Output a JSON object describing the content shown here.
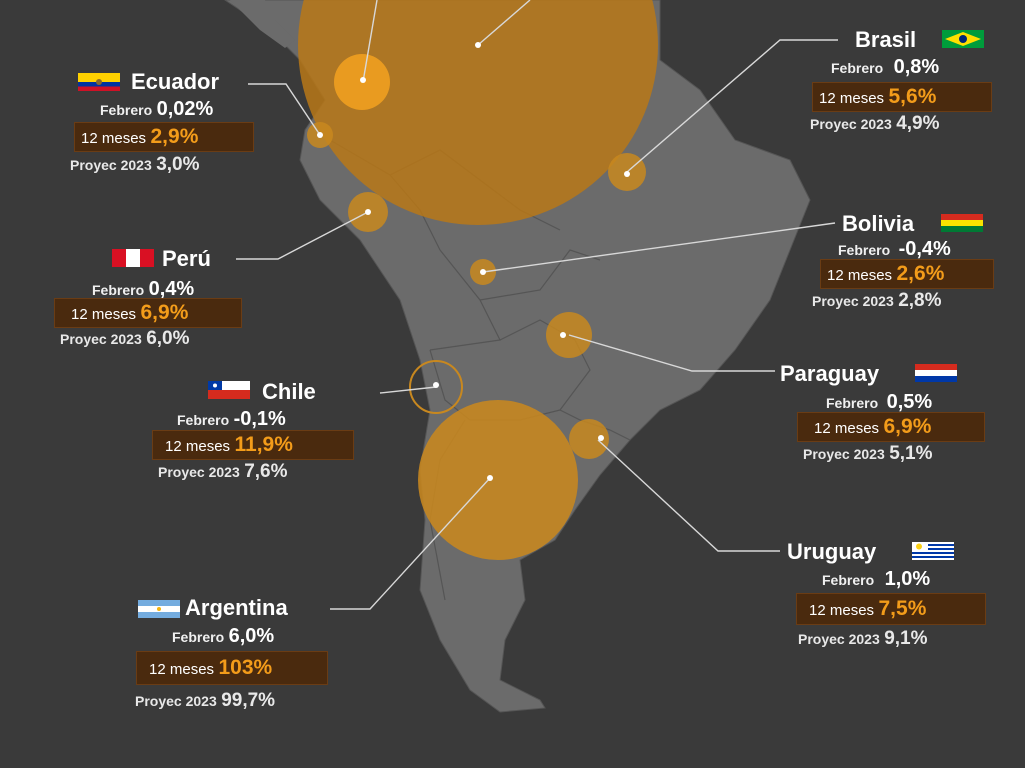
{
  "labels": {
    "febrero": "Febrero",
    "meses": "12 meses",
    "proyec": "Proyec 2023"
  },
  "colors": {
    "background": "#3a3a3a",
    "land": "#6a6a6a",
    "bubble": "#c8881f",
    "highlight": "#f39c1a",
    "box": "#4a2a0e"
  },
  "countries": [
    {
      "id": "ecuador",
      "name": "Ecuador",
      "febrero": "0,02%",
      "meses": "2,9%",
      "proyec": "3,0%",
      "flag": "ecuador-flag-icon"
    },
    {
      "id": "peru",
      "name": "Perú",
      "febrero": "0,4%",
      "meses": "6,9%",
      "proyec": "6,0%",
      "flag": "peru-flag-icon"
    },
    {
      "id": "chile",
      "name": "Chile",
      "febrero": "-0,1%",
      "meses": "11,9%",
      "proyec": "7,6%",
      "flag": "chile-flag-icon"
    },
    {
      "id": "argentina",
      "name": "Argentina",
      "febrero": "6,0%",
      "meses": "103%",
      "proyec": "99,7%",
      "flag": "argentina-flag-icon"
    },
    {
      "id": "brasil",
      "name": "Brasil",
      "febrero": "0,8%",
      "meses": "5,6%",
      "proyec": "4,9%",
      "flag": "brazil-flag-icon"
    },
    {
      "id": "bolivia",
      "name": "Bolivia",
      "febrero": "-0,4%",
      "meses": "2,6%",
      "proyec": "2,8%",
      "flag": "bolivia-flag-icon"
    },
    {
      "id": "paraguay",
      "name": "Paraguay",
      "febrero": "0,5%",
      "meses": "6,9%",
      "proyec": "5,1%",
      "flag": "paraguay-flag-icon"
    },
    {
      "id": "uruguay",
      "name": "Uruguay",
      "febrero": "1,0%",
      "meses": "7,5%",
      "proyec": "9,1%",
      "flag": "uruguay-flag-icon"
    }
  ]
}
